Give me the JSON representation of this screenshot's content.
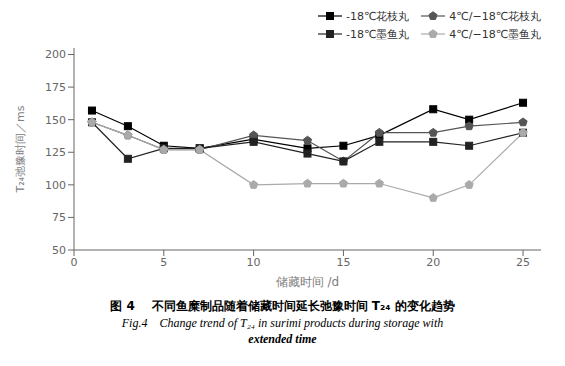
{
  "chart_data": {
    "type": "line",
    "x": [
      1,
      3,
      5,
      7,
      10,
      13,
      15,
      17,
      20,
      22,
      25
    ],
    "series": [
      {
        "name": "-18℃花枝丸",
        "color": "#000000",
        "marker": "square",
        "line_style": "solid",
        "values": [
          157,
          145,
          130,
          128,
          135,
          128,
          130,
          138,
          158,
          150,
          163
        ]
      },
      {
        "name": "4℃/−18℃花枝丸",
        "color": "#555555",
        "marker": "pentagon",
        "line_style": "solid",
        "values": [
          148,
          138,
          127,
          127,
          138,
          134,
          118,
          140,
          140,
          145,
          148
        ]
      },
      {
        "name": "-18℃墨鱼丸",
        "color": "#222222",
        "marker": "square",
        "line_style": "solid",
        "values": [
          148,
          120,
          128,
          128,
          133,
          124,
          118,
          133,
          133,
          130,
          140
        ]
      },
      {
        "name": "4℃/−18℃墨鱼丸",
        "color": "#aaaaaa",
        "marker": "pentagon",
        "line_style": "solid",
        "values": [
          148,
          138,
          127,
          127,
          100,
          101,
          101,
          101,
          90,
          100,
          140
        ]
      }
    ],
    "x_label": "储藏时间 /d",
    "y_label": "T₂₄弛豫时间／ms",
    "xlim": [
      0,
      26
    ],
    "ylim": [
      50,
      205
    ],
    "xticks": [
      0,
      5,
      10,
      15,
      20,
      25
    ],
    "yticks": [
      50,
      75,
      100,
      125,
      150,
      175,
      200
    ],
    "grid": false,
    "legend": "upper right",
    "annotations": [
      "图 4    不同鱼糜制品随着储藏时间延长弛豫时间 T₂₄ 的变化趋势",
      "Fig.4    Change trend of T₂₄ in surimi products during storage with",
      "extended time"
    ]
  }
}
